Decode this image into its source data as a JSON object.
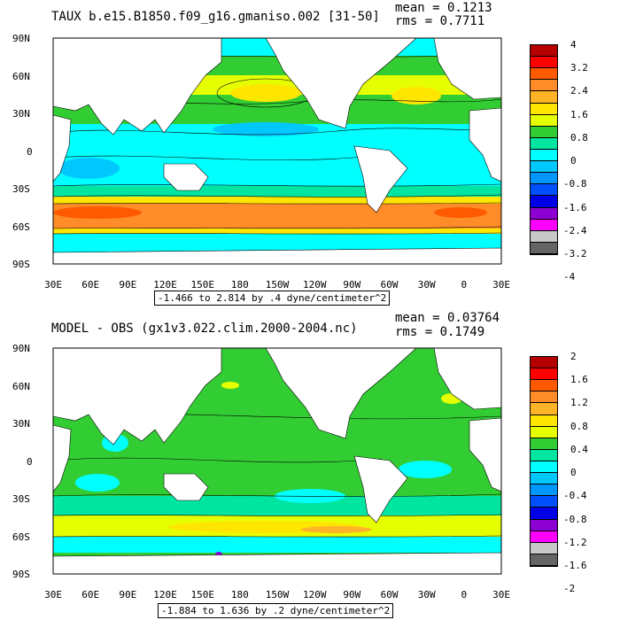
{
  "panels": [
    {
      "title": "TAUX b.e15.B1850.f09_g16.gmaniso.002 [31-50]",
      "mean": "mean = 0.1213",
      "rms": "rms = 0.7711",
      "range": "-1.466 to 2.814 by .4 dyne/centimeter^2",
      "colorbar_labels": [
        "4",
        "3.2",
        "2.4",
        "1.6",
        "0.8",
        "0",
        "-0.8",
        "-1.6",
        "-2.4",
        "-3.2",
        "-4"
      ],
      "colorbar_colors": [
        "#b40000",
        "#ff0000",
        "#ff5a00",
        "#ff8c28",
        "#ffb428",
        "#ffe600",
        "#e6ff00",
        "#32cd32",
        "#00e6a0",
        "#00ffff",
        "#00c8ff",
        "#0096ff",
        "#0050ff",
        "#0000e6",
        "#8c00d2",
        "#ff00ff",
        "#c8c8c8",
        "#646464"
      ]
    },
    {
      "title": "MODEL - OBS (gx1v3.022.clim.2000-2004.nc)",
      "mean": "mean = 0.03764",
      "rms": "rms = 0.1749",
      "range": "-1.884 to 1.636 by .2 dyne/centimeter^2",
      "colorbar_labels": [
        "2",
        "1.6",
        "1.2",
        "0.8",
        "0.4",
        "0",
        "-0.4",
        "-0.8",
        "-1.2",
        "-1.6",
        "-2"
      ],
      "colorbar_colors": [
        "#b40000",
        "#ff0000",
        "#ff5a00",
        "#ff8c28",
        "#ffb428",
        "#ffe600",
        "#e6ff00",
        "#32cd32",
        "#00e6a0",
        "#00ffff",
        "#00c8ff",
        "#0096ff",
        "#0050ff",
        "#0000e6",
        "#8c00d2",
        "#ff00ff",
        "#c8c8c8",
        "#646464"
      ]
    }
  ],
  "lat_labels": [
    "90N",
    "60N",
    "30N",
    "0",
    "30S",
    "60S",
    "90S"
  ],
  "lon_labels": [
    "30E",
    "60E",
    "90E",
    "120E",
    "150E",
    "180",
    "150W",
    "120W",
    "90W",
    "60W",
    "30W",
    "0",
    "30E"
  ],
  "land_color": "#ffffff"
}
